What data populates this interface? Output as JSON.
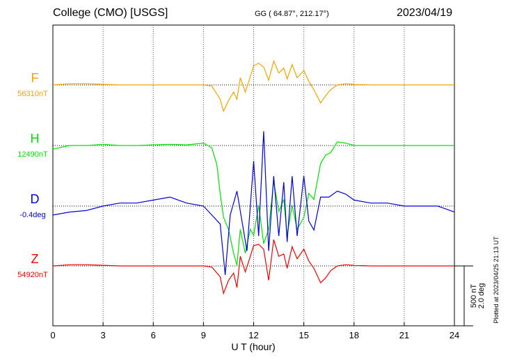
{
  "header": {
    "station": "College (CMO)  [USGS]",
    "coords": "GG ( 64.87°, 212.17°)",
    "date": "2023/04/19"
  },
  "plotted_note": "Plotted at 2023/04/25 21:13 UT",
  "scale_bar": {
    "line1": "500 nT",
    "line2": "2.0 deg"
  },
  "colors": {
    "F": "#f0a400",
    "H": "#00e000",
    "D": "#0000dd",
    "Z": "#ee0000"
  },
  "chart_data": {
    "type": "line",
    "xlabel": "U T (hour)",
    "xlim": [
      0,
      24
    ],
    "xticks": [
      "0",
      "3",
      "6",
      "9",
      "12",
      "15",
      "18",
      "21",
      "24"
    ],
    "scale": "500 nT / 2.0 deg",
    "series": [
      {
        "name": "F",
        "baseline": "56310nT",
        "x": [
          0,
          1,
          2,
          3,
          4,
          5,
          6,
          7,
          8,
          9,
          9.5,
          10,
          10.2,
          10.5,
          10.8,
          11,
          11.2,
          11.5,
          11.8,
          12,
          12.3,
          12.6,
          12.9,
          13.2,
          13.5,
          13.8,
          14,
          14.3,
          14.6,
          15,
          15.3,
          15.6,
          16,
          16.3,
          16.6,
          17,
          17.5,
          18,
          19,
          20,
          21,
          22,
          23,
          24
        ],
        "y": [
          0,
          10,
          10,
          5,
          0,
          0,
          0,
          0,
          0,
          0,
          -10,
          -120,
          -220,
          -130,
          -60,
          -120,
          60,
          -60,
          70,
          160,
          180,
          150,
          40,
          200,
          100,
          140,
          50,
          170,
          60,
          120,
          30,
          -40,
          -150,
          -90,
          -40,
          0,
          10,
          5,
          0,
          0,
          0,
          0,
          0,
          0
        ]
      },
      {
        "name": "H",
        "baseline": "12490nT",
        "x": [
          0,
          1,
          2,
          3,
          4,
          5,
          6,
          7,
          8,
          9,
          9.5,
          9.8,
          10,
          10.2,
          10.5,
          10.8,
          11,
          11.2,
          11.5,
          11.8,
          12,
          12.3,
          12.6,
          12.9,
          13.2,
          13.5,
          13.8,
          14,
          14.3,
          14.6,
          15,
          15.3,
          15.6,
          16,
          16.3,
          16.6,
          17,
          17.5,
          18,
          19,
          20,
          21,
          22,
          23,
          24
        ],
        "y": [
          -30,
          0,
          0,
          10,
          0,
          0,
          5,
          10,
          5,
          20,
          -20,
          -160,
          -400,
          -600,
          -700,
          -900,
          -1000,
          -700,
          -900,
          -700,
          -750,
          -500,
          -820,
          -700,
          -300,
          -550,
          -450,
          -750,
          -500,
          -700,
          -600,
          -400,
          -450,
          -150,
          -80,
          -60,
          30,
          20,
          0,
          0,
          0,
          0,
          0,
          0,
          0
        ]
      },
      {
        "name": "D",
        "baseline": "-0.4deg",
        "x": [
          0,
          1,
          2,
          3,
          4,
          5,
          6,
          7,
          8,
          9,
          9.5,
          10,
          10.3,
          10.6,
          11,
          11.3,
          11.6,
          12,
          12.3,
          12.6,
          12.9,
          13.2,
          13.5,
          13.8,
          14,
          14.3,
          14.6,
          15,
          15.3,
          15.6,
          16,
          16.5,
          17,
          17.5,
          18,
          19,
          20,
          21,
          22,
          23,
          24
        ],
        "y": [
          -0.3,
          -0.2,
          -0.15,
          0,
          0.1,
          0.1,
          0.2,
          0.3,
          0.1,
          0,
          -0.3,
          -0.6,
          -2.3,
          -0.3,
          0.5,
          -0.5,
          -1.5,
          1.5,
          -1.0,
          2.5,
          -1.5,
          1.0,
          -1.0,
          0.8,
          -1.2,
          1.0,
          -1.0,
          1.0,
          -0.5,
          -0.8,
          0.3,
          0.3,
          0.5,
          0.4,
          0.2,
          0.1,
          0.1,
          0,
          0,
          0,
          -0.2
        ]
      },
      {
        "name": "Z",
        "baseline": "54920nT",
        "x": [
          0,
          1,
          2,
          3,
          4,
          5,
          6,
          7,
          8,
          9,
          9.5,
          10,
          10.2,
          10.5,
          10.8,
          11,
          11.2,
          11.5,
          11.8,
          12,
          12.3,
          12.6,
          12.9,
          13.2,
          13.5,
          13.8,
          14,
          14.3,
          14.6,
          15,
          15.3,
          15.6,
          16,
          16.3,
          16.6,
          17,
          17.5,
          18,
          19,
          20,
          21,
          22,
          23,
          24
        ],
        "y": [
          0,
          10,
          10,
          5,
          0,
          0,
          0,
          0,
          0,
          0,
          -10,
          -90,
          -230,
          -120,
          -60,
          -180,
          80,
          -50,
          80,
          170,
          180,
          140,
          -120,
          220,
          80,
          100,
          -20,
          160,
          60,
          140,
          40,
          -20,
          -140,
          -100,
          -40,
          0,
          10,
          5,
          0,
          0,
          0,
          0,
          0,
          0
        ]
      }
    ]
  }
}
